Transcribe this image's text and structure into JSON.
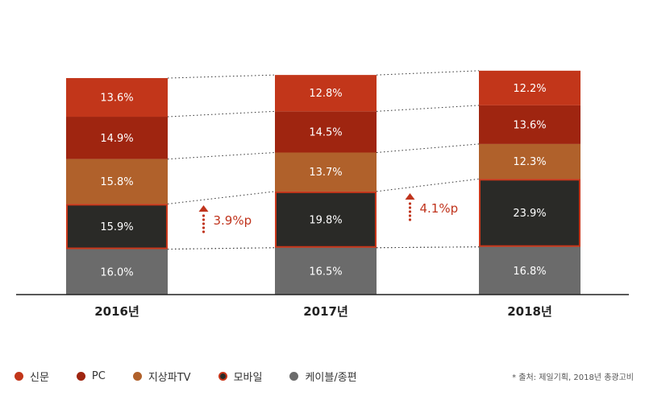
{
  "chart_data": {
    "type": "bar",
    "stacked": true,
    "categories": [
      "2016년",
      "2017년",
      "2018년"
    ],
    "series": [
      {
        "name": "케이블/종편",
        "values": [
          16.0,
          16.5,
          16.8
        ],
        "labels": [
          "16.0%",
          "16.5%",
          "16.8%"
        ],
        "color": "#6b6b6b"
      },
      {
        "name": "모바일",
        "values": [
          15.9,
          19.8,
          23.9
        ],
        "labels": [
          "15.9%",
          "19.8%",
          "23.9%"
        ],
        "color": "#2a2a27",
        "highlight": "#c8361a"
      },
      {
        "name": "지상파TV",
        "values": [
          15.8,
          13.7,
          12.3
        ],
        "labels": [
          "15.8%",
          "13.7%",
          "12.3%"
        ],
        "color": "#b0612b"
      },
      {
        "name": "PC",
        "values": [
          14.9,
          14.5,
          13.6
        ],
        "labels": [
          "14.9%",
          "14.5%",
          "13.6%"
        ],
        "color": "#9f2510"
      },
      {
        "name": "신문",
        "values": [
          13.6,
          12.8,
          12.2
        ],
        "labels": [
          "13.6%",
          "12.8%",
          "12.2%"
        ],
        "color": "#c2361a"
      }
    ],
    "annotations": [
      {
        "text": "3.9%p",
        "between": [
          0,
          1
        ],
        "color": "#c0341d"
      },
      {
        "text": "4.1%p",
        "between": [
          1,
          2
        ],
        "color": "#c0341d"
      }
    ],
    "legend_position": "bottom-left",
    "grid": false
  },
  "legend": {
    "items": [
      {
        "label": "신문",
        "color": "#c2361a"
      },
      {
        "label": "PC",
        "color": "#9f2510"
      },
      {
        "label": "지상파TV",
        "color": "#b0612b"
      },
      {
        "label": "모바일",
        "color": "#2a2a27",
        "border": "#c8361a"
      },
      {
        "label": "케이블/종편",
        "color": "#6b6b6b"
      }
    ]
  },
  "source": "* 출처: 제일기획, 2018년 총광고비"
}
